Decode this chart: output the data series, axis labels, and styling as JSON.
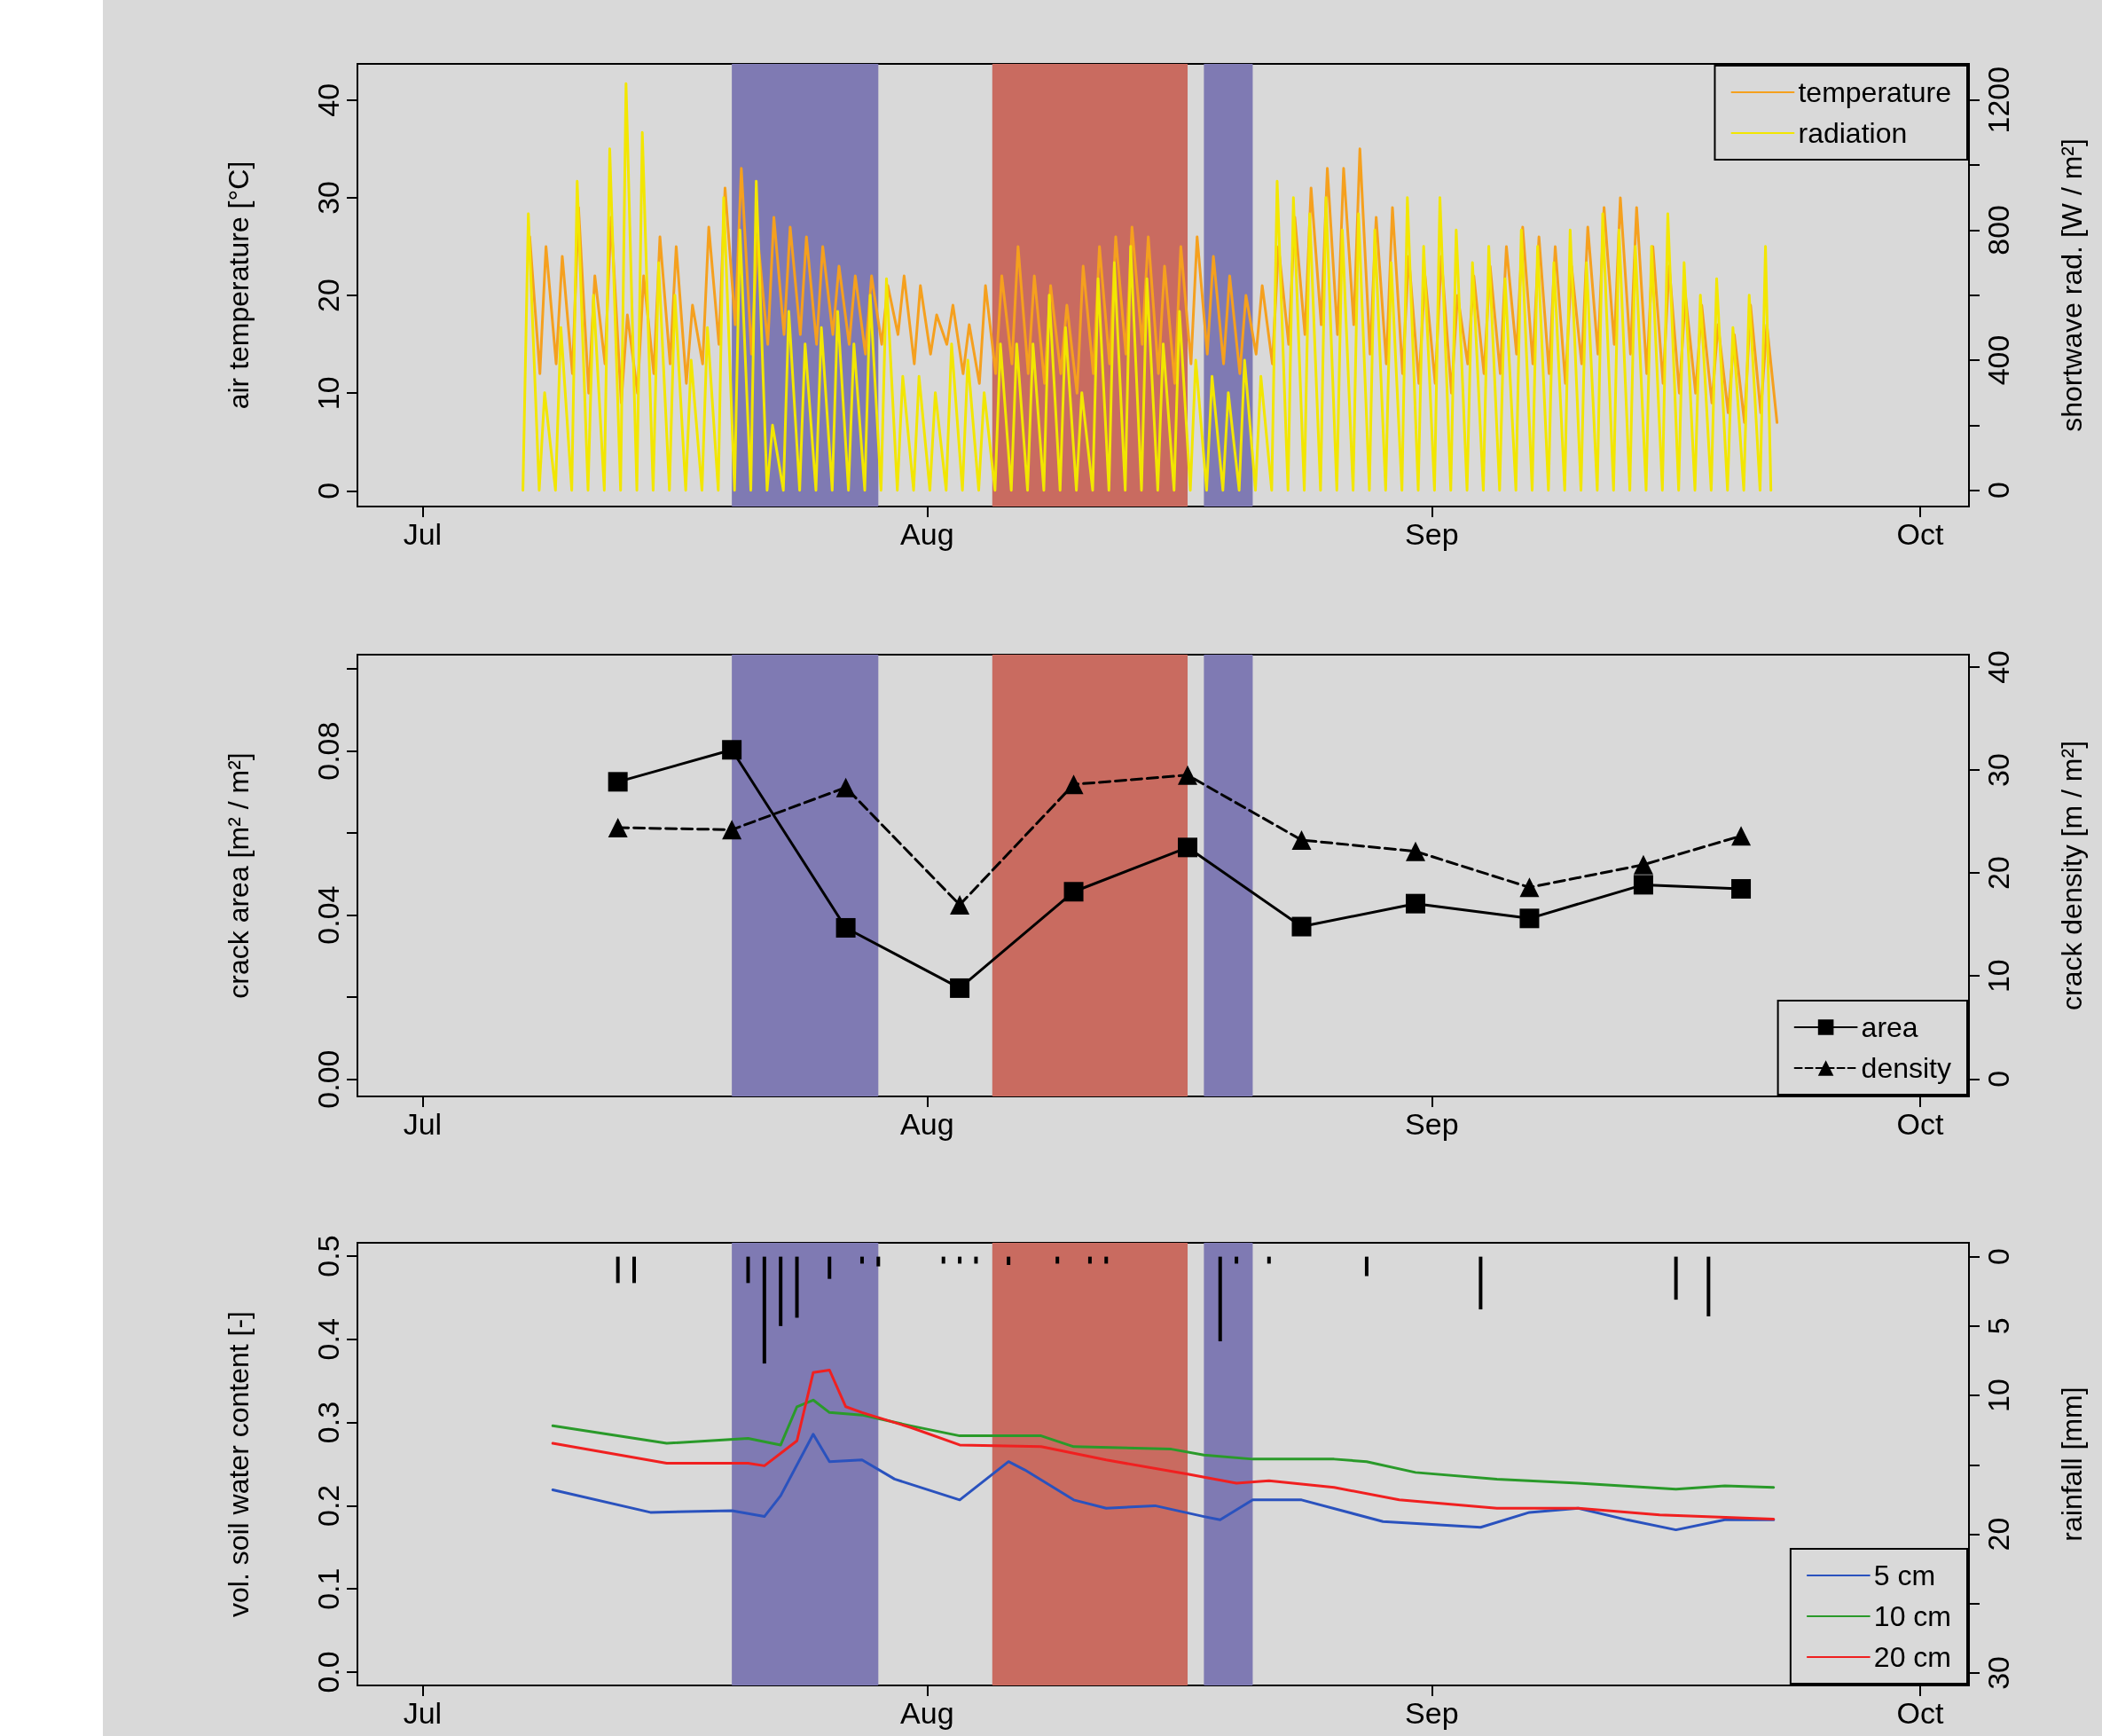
{
  "chart_data": [
    {
      "type": "line",
      "ylabel": "air temperature [°C]",
      "y2label": "shortwave rad. [W / m²]",
      "xlim": [
        "--06-27",
        "--10-04"
      ],
      "xticks": [
        {
          "value": "--07-01",
          "label": "Jul"
        },
        {
          "value": "--08-01",
          "label": "Aug"
        },
        {
          "value": "--09-01",
          "label": "Sep"
        },
        {
          "value": "--10-01",
          "label": "Oct"
        }
      ],
      "ylim": [
        -1.6,
        43.7
      ],
      "yticks": [
        0,
        10,
        20,
        30,
        40
      ],
      "y2lim": [
        -50,
        1311
      ],
      "y2ticks": [
        0,
        {
          "value": 200,
          "label": null
        },
        400,
        {
          "value": 600,
          "label": null
        },
        800,
        {
          "value": 1000,
          "label": null
        },
        1200
      ],
      "grid": false,
      "legend": "top right",
      "bands": [
        {
          "axis": "x",
          "from": "--07-20",
          "to": "--07-29",
          "color": "#7f7ab3"
        },
        {
          "axis": "x",
          "from": "--08-05",
          "to": "--08-17",
          "color": "#c96b60"
        },
        {
          "axis": "x",
          "from": "--08-18",
          "to": "--08-21",
          "color": "#7f7ab3"
        }
      ],
      "series": [
        {
          "name": "temperature",
          "color": "#f5a01e",
          "x": [
            "--07-07T14:00",
            "--07-08T05:00",
            "--07-08T14:00",
            "--07-09T05:00",
            "--07-09T14:00",
            "--07-10T05:00",
            "--07-10T14:00",
            "--07-11T05:00",
            "--07-11T14:00",
            "--07-12T05:00",
            "--07-12T14:00",
            "--07-13T05:00",
            "--07-13T14:00",
            "--07-14T05:00",
            "--07-14T14:00",
            "--07-15T05:00",
            "--07-15T14:00",
            "--07-16T05:00",
            "--07-16T14:00",
            "--07-17T05:00",
            "--07-17T14:00",
            "--07-18T05:00",
            "--07-18T14:00",
            "--07-19T05:00",
            "--07-19T14:00",
            "--07-20T05:00",
            "--07-20T14:00",
            "--07-21T05:00",
            "--07-21T14:00",
            "--07-22T05:00",
            "--07-22T14:00",
            "--07-23T05:00",
            "--07-23T14:00",
            "--07-24T05:00",
            "--07-24T14:00",
            "--07-25T05:00",
            "--07-25T14:00",
            "--07-26T05:00",
            "--07-26T14:00",
            "--07-27T05:00",
            "--07-27T14:00",
            "--07-28T05:00",
            "--07-28T14:00",
            "--07-29T05:00",
            "--07-29T14:00",
            "--07-30T05:00",
            "--07-30T14:00",
            "--07-31T05:00",
            "--07-31T14:00",
            "--08-01T05:00",
            "--08-01T14:00",
            "--08-02T05:00",
            "--08-02T14:00",
            "--08-03T05:00",
            "--08-03T14:00",
            "--08-04T05:00",
            "--08-04T14:00",
            "--08-05T05:00",
            "--08-05T14:00",
            "--08-06T05:00",
            "--08-06T14:00",
            "--08-07T05:00",
            "--08-07T14:00",
            "--08-08T05:00",
            "--08-08T14:00",
            "--08-09T05:00",
            "--08-09T14:00",
            "--08-10T05:00",
            "--08-10T14:00",
            "--08-11T05:00",
            "--08-11T14:00",
            "--08-12T05:00",
            "--08-12T14:00",
            "--08-13T05:00",
            "--08-13T14:00",
            "--08-14T05:00",
            "--08-14T14:00",
            "--08-15T05:00",
            "--08-15T14:00",
            "--08-16T05:00",
            "--08-16T14:00",
            "--08-17T05:00",
            "--08-17T14:00",
            "--08-18T05:00",
            "--08-18T14:00",
            "--08-19T05:00",
            "--08-19T14:00",
            "--08-20T05:00",
            "--08-20T14:00",
            "--08-21T05:00",
            "--08-21T14:00",
            "--08-22T05:00",
            "--08-22T14:00",
            "--08-23T05:00",
            "--08-23T14:00",
            "--08-24T05:00",
            "--08-24T14:00",
            "--08-25T05:00",
            "--08-25T14:00",
            "--08-26T05:00",
            "--08-26T14:00",
            "--08-27T05:00",
            "--08-27T14:00",
            "--08-28T05:00",
            "--08-28T14:00",
            "--08-29T05:00",
            "--08-29T14:00",
            "--08-30T05:00",
            "--08-30T14:00",
            "--08-31T05:00",
            "--08-31T14:00",
            "--09-01T05:00",
            "--09-01T14:00",
            "--09-02T05:00",
            "--09-02T14:00",
            "--09-03T05:00",
            "--09-03T14:00",
            "--09-04T05:00",
            "--09-04T14:00",
            "--09-05T05:00",
            "--09-05T14:00",
            "--09-06T05:00",
            "--09-06T14:00",
            "--09-07T05:00",
            "--09-07T14:00",
            "--09-08T05:00",
            "--09-08T14:00",
            "--09-09T05:00",
            "--09-09T14:00",
            "--09-10T05:00",
            "--09-10T14:00",
            "--09-11T05:00",
            "--09-11T14:00",
            "--09-12T05:00",
            "--09-12T14:00",
            "--09-13T05:00",
            "--09-13T14:00",
            "--09-14T05:00",
            "--09-14T14:00",
            "--09-15T05:00",
            "--09-15T14:00",
            "--09-16T05:00",
            "--09-16T14:00",
            "--09-17T05:00",
            "--09-17T14:00",
            "--09-18T05:00",
            "--09-18T14:00",
            "--09-19T05:00",
            "--09-19T14:00",
            "--09-20T05:00",
            "--09-20T14:00",
            "--09-21T05:00",
            "--09-21T14:00",
            "--09-22T05:00"
          ],
          "values": [
            26,
            12,
            25,
            13,
            24,
            12,
            29,
            10,
            22,
            13,
            28,
            9,
            18,
            10,
            22,
            12,
            26,
            13,
            25,
            11,
            19,
            13,
            27,
            15,
            31,
            17,
            33,
            14,
            26,
            15,
            28,
            16,
            27,
            16,
            26,
            15,
            25,
            16,
            23,
            15,
            22,
            14,
            22,
            15,
            21,
            16,
            22,
            13,
            21,
            14,
            18,
            15,
            19,
            12,
            17,
            11,
            21,
            12,
            22,
            13,
            25,
            12,
            22,
            11,
            21,
            12,
            19,
            10,
            23,
            12,
            25,
            13,
            26,
            14,
            27,
            15,
            26,
            12,
            23,
            11,
            25,
            13,
            26,
            14,
            24,
            13,
            22,
            12,
            20,
            14,
            21,
            13,
            25,
            15,
            28,
            16,
            31,
            17,
            33,
            16,
            33,
            17,
            35,
            14,
            28,
            13,
            29,
            12,
            24,
            11,
            22,
            11,
            24,
            10,
            20,
            13,
            22,
            12,
            23,
            12,
            25,
            14,
            27,
            13,
            26,
            12,
            25,
            11,
            23,
            13,
            27,
            14,
            29,
            15,
            30,
            14,
            29,
            12,
            25,
            11,
            23,
            10,
            20,
            10,
            19,
            9,
            17,
            8,
            16,
            7,
            19,
            8,
            17,
            7
          ]
        },
        {
          "name": "radiation",
          "color": "#f2e600",
          "axis": "y2",
          "x": [
            "--07-07T04:00",
            "--07-07T12:00",
            "--07-08T04:00",
            "--07-08T12:00",
            "--07-09T04:00",
            "--07-09T12:00",
            "--07-10T04:00",
            "--07-10T12:00",
            "--07-11T04:00",
            "--07-11T12:00",
            "--07-12T04:00",
            "--07-12T12:00",
            "--07-13T04:00",
            "--07-13T12:00",
            "--07-14T04:00",
            "--07-14T12:00",
            "--07-15T04:00",
            "--07-15T12:00",
            "--07-16T04:00",
            "--07-16T12:00",
            "--07-17T04:00",
            "--07-17T12:00",
            "--07-18T04:00",
            "--07-18T12:00",
            "--07-19T04:00",
            "--07-19T12:00",
            "--07-20T04:00",
            "--07-20T12:00",
            "--07-21T04:00",
            "--07-21T12:00",
            "--07-22T04:00",
            "--07-22T12:00",
            "--07-23T04:00",
            "--07-23T12:00",
            "--07-24T04:00",
            "--07-24T12:00",
            "--07-25T04:00",
            "--07-25T12:00",
            "--07-26T04:00",
            "--07-26T12:00",
            "--07-27T04:00",
            "--07-27T12:00",
            "--07-28T04:00",
            "--07-28T12:00",
            "--07-29T04:00",
            "--07-29T12:00",
            "--07-30T04:00",
            "--07-30T12:00",
            "--07-31T04:00",
            "--07-31T12:00",
            "--08-01T04:00",
            "--08-01T12:00",
            "--08-02T04:00",
            "--08-02T12:00",
            "--08-03T04:00",
            "--08-03T12:00",
            "--08-04T04:00",
            "--08-04T12:00",
            "--08-05T04:00",
            "--08-05T12:00",
            "--08-06T04:00",
            "--08-06T12:00",
            "--08-07T04:00",
            "--08-07T12:00",
            "--08-08T04:00",
            "--08-08T12:00",
            "--08-09T04:00",
            "--08-09T12:00",
            "--08-10T04:00",
            "--08-10T12:00",
            "--08-11T04:00",
            "--08-11T12:00",
            "--08-12T04:00",
            "--08-12T12:00",
            "--08-13T04:00",
            "--08-13T12:00",
            "--08-14T04:00",
            "--08-14T12:00",
            "--08-15T04:00",
            "--08-15T12:00",
            "--08-16T04:00",
            "--08-16T12:00",
            "--08-17T04:00",
            "--08-17T12:00",
            "--08-18T04:00",
            "--08-18T12:00",
            "--08-19T04:00",
            "--08-19T12:00",
            "--08-20T04:00",
            "--08-20T12:00",
            "--08-21T04:00",
            "--08-21T12:00",
            "--08-22T04:00",
            "--08-22T12:00",
            "--08-23T04:00",
            "--08-23T12:00",
            "--08-24T04:00",
            "--08-24T12:00",
            "--08-25T04:00",
            "--08-25T12:00",
            "--08-26T04:00",
            "--08-26T12:00",
            "--08-27T04:00",
            "--08-27T12:00",
            "--08-28T04:00",
            "--08-28T12:00",
            "--08-29T04:00",
            "--08-29T12:00",
            "--08-30T04:00",
            "--08-30T12:00",
            "--08-31T04:00",
            "--08-31T12:00",
            "--09-01T04:00",
            "--09-01T12:00",
            "--09-02T04:00",
            "--09-02T12:00",
            "--09-03T04:00",
            "--09-03T12:00",
            "--09-04T04:00",
            "--09-04T12:00",
            "--09-05T04:00",
            "--09-05T12:00",
            "--09-06T04:00",
            "--09-06T12:00",
            "--09-07T04:00",
            "--09-07T12:00",
            "--09-08T04:00",
            "--09-08T12:00",
            "--09-09T04:00",
            "--09-09T12:00",
            "--09-10T04:00",
            "--09-10T12:00",
            "--09-11T04:00",
            "--09-11T12:00",
            "--09-12T04:00",
            "--09-12T12:00",
            "--09-13T04:00",
            "--09-13T12:00",
            "--09-14T04:00",
            "--09-14T12:00",
            "--09-15T04:00",
            "--09-15T12:00",
            "--09-16T04:00",
            "--09-16T12:00",
            "--09-17T04:00",
            "--09-17T12:00",
            "--09-18T04:00",
            "--09-18T12:00",
            "--09-19T04:00",
            "--09-19T12:00",
            "--09-20T04:00",
            "--09-20T12:00",
            "--09-21T04:00",
            "--09-21T12:00",
            "--09-21T20:00"
          ],
          "values": [
            0,
            850,
            0,
            300,
            0,
            500,
            0,
            950,
            0,
            600,
            0,
            1050,
            0,
            1250,
            0,
            1100,
            0,
            700,
            0,
            600,
            0,
            400,
            0,
            500,
            0,
            900,
            0,
            800,
            0,
            950,
            0,
            200,
            0,
            550,
            0,
            450,
            0,
            500,
            0,
            550,
            0,
            450,
            0,
            600,
            0,
            650,
            0,
            350,
            0,
            350,
            0,
            300,
            0,
            450,
            0,
            400,
            0,
            300,
            0,
            450,
            0,
            450,
            0,
            450,
            0,
            600,
            0,
            500,
            0,
            300,
            0,
            650,
            0,
            700,
            0,
            750,
            0,
            650,
            0,
            450,
            0,
            550,
            0,
            400,
            0,
            350,
            0,
            300,
            0,
            400,
            0,
            350,
            0,
            950,
            0,
            900,
            0,
            850,
            0,
            900,
            0,
            800,
            0,
            850,
            0,
            800,
            0,
            700,
            0,
            900,
            0,
            750,
            0,
            900,
            0,
            800,
            0,
            700,
            0,
            750,
            0,
            650,
            0,
            800,
            0,
            750,
            0,
            700,
            0,
            800,
            0,
            700,
            0,
            850,
            0,
            800,
            0,
            750,
            0,
            750,
            0,
            850,
            0,
            700,
            0,
            600,
            0,
            650,
            0,
            500,
            0,
            600,
            0,
            750,
            0
          ]
        }
      ]
    },
    {
      "type": "line",
      "ylabel": "crack area [m² / m²]",
      "y2label": "crack density [m / m²]",
      "xlim": [
        "--06-27",
        "--10-04"
      ],
      "xticks": [
        {
          "value": "--07-01",
          "label": "Jul"
        },
        {
          "value": "--08-01",
          "label": "Aug"
        },
        {
          "value": "--09-01",
          "label": "Sep"
        },
        {
          "value": "--10-01",
          "label": "Oct"
        }
      ],
      "ylim": [
        -0.0042,
        0.1035
      ],
      "yticks": [
        {
          "value": 0,
          "label": "0.00"
        },
        {
          "value": 0.02,
          "label": null
        },
        0.04,
        {
          "value": 0.06,
          "label": null
        },
        0.08,
        {
          "value": 0.1,
          "label": null
        }
      ],
      "y2lim": [
        -1.7,
        41.2
      ],
      "y2ticks": [
        0,
        10,
        20,
        30,
        40
      ],
      "grid": false,
      "legend": "bottom right",
      "bands": [
        {
          "axis": "x",
          "from": "--07-20",
          "to": "--07-29",
          "color": "#7f7ab3"
        },
        {
          "axis": "x",
          "from": "--08-05",
          "to": "--08-17",
          "color": "#c96b60"
        },
        {
          "axis": "x",
          "from": "--08-18",
          "to": "--08-21",
          "color": "#7f7ab3"
        }
      ],
      "series": [
        {
          "name": "area",
          "color": "#000000",
          "marker": "square",
          "line_style": "solid",
          "x": [
            "--07-13",
            "--07-20",
            "--07-27",
            "--08-03",
            "--08-10",
            "--08-17",
            "--08-24",
            "--08-31",
            "--09-07",
            "--09-14",
            "--09-20"
          ],
          "values": [
            0.0725,
            0.0803,
            0.0369,
            0.0222,
            0.0457,
            0.0565,
            0.0372,
            0.0428,
            0.0392,
            0.0474,
            0.0464
          ]
        },
        {
          "name": "density",
          "color": "#000000",
          "marker": "triangle",
          "line_style": "dashed",
          "axis": "y2",
          "x": [
            "--07-13",
            "--07-20",
            "--07-27",
            "--08-03",
            "--08-10",
            "--08-17",
            "--08-24",
            "--08-31",
            "--09-07",
            "--09-14",
            "--09-20"
          ],
          "values": [
            24.4,
            24.2,
            28.3,
            16.9,
            28.6,
            29.5,
            23.2,
            22.1,
            18.6,
            20.8,
            23.6
          ]
        }
      ]
    },
    {
      "type": "line",
      "ylabel": "vol. soil water content [-]",
      "y2label": "rainfall [mm]",
      "xlim": [
        "--06-27",
        "--10-04"
      ],
      "xticks": [
        {
          "value": "--07-01",
          "label": "Jul"
        },
        {
          "value": "--08-01",
          "label": "Aug"
        },
        {
          "value": "--09-01",
          "label": "Sep"
        },
        {
          "value": "--10-01",
          "label": "Oct"
        }
      ],
      "ylim": [
        -0.016,
        0.516
      ],
      "yticks": [
        {
          "value": 0,
          "label": "0.0"
        },
        0.1,
        0.2,
        0.3,
        0.4,
        0.5
      ],
      "y2lim": [
        30.9,
        -1.0
      ],
      "y2ticks": [
        0,
        5,
        10,
        {
          "value": 15,
          "label": null
        },
        20,
        {
          "value": 25,
          "label": null
        },
        30
      ],
      "grid": false,
      "legend": "bottom right",
      "bands": [
        {
          "axis": "x",
          "from": "--07-20",
          "to": "--07-29",
          "color": "#7f7ab3"
        },
        {
          "axis": "x",
          "from": "--08-05",
          "to": "--08-17",
          "color": "#c96b60"
        },
        {
          "axis": "x",
          "from": "--08-18",
          "to": "--08-21",
          "color": "#7f7ab3"
        }
      ],
      "series": [
        {
          "type": "bar",
          "color": "#000000",
          "axis": "y2",
          "x": [
            "--07-13",
            "--07-14",
            "--07-21",
            "--07-22",
            "--07-23",
            "--07-24",
            "--07-26",
            "--07-28",
            "--07-29",
            "--08-02",
            "--08-03",
            "--08-04",
            "--08-06",
            "--08-09",
            "--08-11",
            "--08-12",
            "--08-19",
            "--08-20",
            "--08-22",
            "--08-28",
            "--09-04",
            "--09-16",
            "--09-18"
          ],
          "values": [
            1.9,
            1.9,
            1.9,
            7.7,
            5.0,
            4.4,
            1.6,
            0.5,
            0.7,
            0.5,
            0.5,
            0.5,
            0.6,
            0.5,
            0.5,
            0.5,
            6.1,
            0.5,
            0.5,
            1.4,
            3.8,
            3.1,
            4.3
          ]
        },
        {
          "name": "5 cm",
          "color": "#2a52be",
          "x": [
            "--07-09",
            "--07-15",
            "--07-20",
            "--07-22",
            "--07-23",
            "--07-25",
            "--07-26",
            "--07-28",
            "--07-30",
            "--08-03",
            "--08-06",
            "--08-07",
            "--08-10",
            "--08-12",
            "--08-15",
            "--08-18",
            "--08-19",
            "--08-21",
            "--08-24",
            "--08-29",
            "--09-04",
            "--09-07",
            "--09-10",
            "--09-13",
            "--09-16",
            "--09-19",
            "--09-22"
          ],
          "values": [
            0.219,
            0.192,
            0.194,
            0.187,
            0.212,
            0.286,
            0.253,
            0.255,
            0.232,
            0.207,
            0.253,
            0.243,
            0.207,
            0.197,
            0.2,
            0.187,
            0.183,
            0.207,
            0.207,
            0.181,
            0.174,
            0.192,
            0.197,
            0.183,
            0.171,
            0.183,
            0.183
          ]
        },
        {
          "name": "10 cm",
          "color": "#2a9a2a",
          "x": [
            "--07-09",
            "--07-16",
            "--07-21",
            "--07-23",
            "--07-24",
            "--07-25",
            "--07-26",
            "--07-28",
            "--07-31",
            "--08-03",
            "--08-08",
            "--08-10",
            "--08-16",
            "--08-18",
            "--08-21",
            "--08-26",
            "--08-28",
            "--08-31",
            "--09-05",
            "--09-10",
            "--09-16",
            "--09-19",
            "--09-22"
          ],
          "values": [
            0.296,
            0.275,
            0.281,
            0.273,
            0.319,
            0.327,
            0.312,
            0.309,
            0.296,
            0.284,
            0.284,
            0.271,
            0.268,
            0.261,
            0.256,
            0.256,
            0.253,
            0.24,
            0.232,
            0.227,
            0.22,
            0.224,
            0.222
          ]
        },
        {
          "name": "20 cm",
          "color": "#f02020",
          "x": [
            "--07-09",
            "--07-16",
            "--07-21",
            "--07-22",
            "--07-24",
            "--07-25",
            "--07-26",
            "--07-27",
            "--07-28",
            "--07-31",
            "--08-03",
            "--08-08",
            "--08-12",
            "--08-17",
            "--08-20",
            "--08-22",
            "--08-26",
            "--08-30",
            "--09-05",
            "--09-10",
            "--09-15",
            "--09-22"
          ],
          "values": [
            0.275,
            0.251,
            0.251,
            0.248,
            0.278,
            0.36,
            0.363,
            0.319,
            0.312,
            0.294,
            0.273,
            0.271,
            0.255,
            0.238,
            0.227,
            0.23,
            0.222,
            0.207,
            0.197,
            0.197,
            0.189,
            0.184
          ]
        }
      ]
    }
  ]
}
